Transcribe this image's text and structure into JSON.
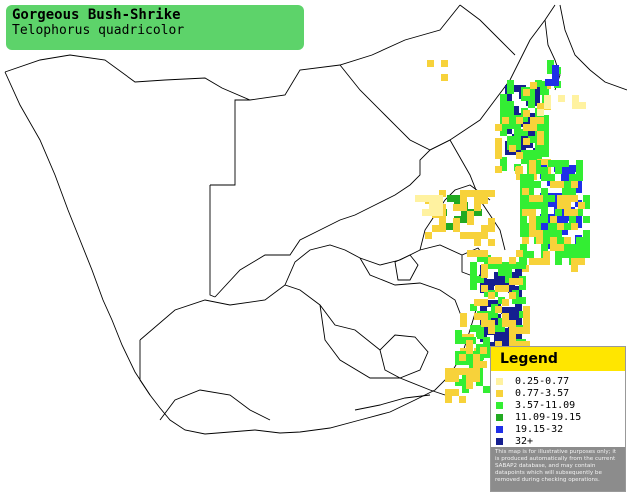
{
  "species": {
    "common_name": "Gorgeous Bush-Shrike",
    "scientific_name": "Telophorus quadricolor"
  },
  "legend": {
    "title": "Legend",
    "items": [
      {
        "label": "0.25-0.77",
        "color": "#fff2a0"
      },
      {
        "label": "0.77-3.57",
        "color": "#f7d23a"
      },
      {
        "label": "3.57-11.09",
        "color": "#33ee33"
      },
      {
        "label": "11.09-19.15",
        "color": "#22aa22"
      },
      {
        "label": "19.15-32",
        "color": "#1f2fe8"
      },
      {
        "label": "32+",
        "color": "#151f90"
      }
    ],
    "disclaimer": "This map is for illustrative purposes only; it is produced automatically from the current SABAP2 database, and may contain datapoints which will subsequently be removed during checking operations."
  },
  "colors": {
    "title_box": "#5dd36a",
    "outline": "#000000",
    "land": "#ffffff"
  }
}
